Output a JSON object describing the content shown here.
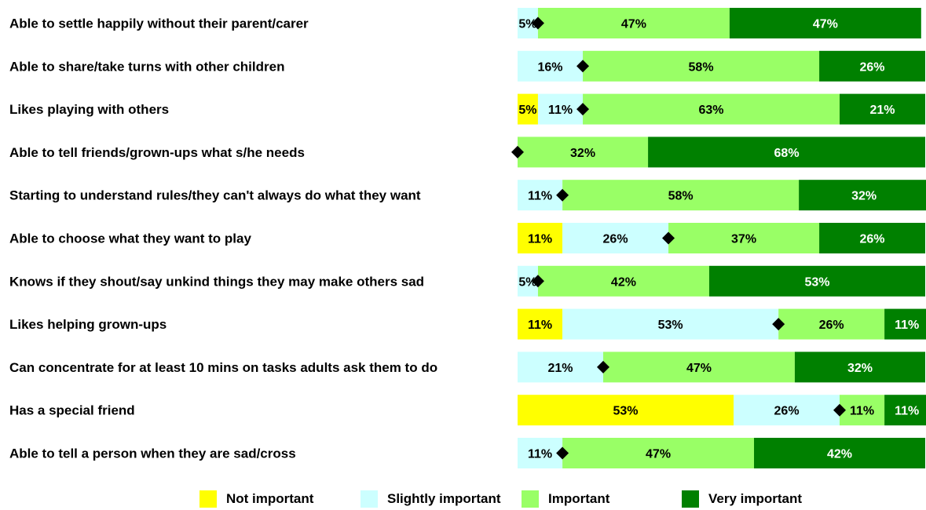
{
  "chart_data": {
    "type": "bar",
    "orientation": "horizontal",
    "stacked": true,
    "normalized_percent": true,
    "categories": [
      "Able to settle happily without their parent/carer",
      "Able to share/take turns with other children",
      "Likes playing with others",
      "Able to tell friends/grown-ups what s/he needs",
      "Starting to understand rules/they can't always do what they want",
      "Able to choose what they want to play",
      "Knows if they shout/say unkind things they may make others sad",
      "Likes helping grown-ups",
      "Can concentrate for at least 10 mins on tasks adults ask them to do",
      "Has a special friend",
      "Able to tell a person when they are sad/cross"
    ],
    "series": [
      {
        "name": "Not important",
        "color": "#ffff00",
        "values": [
          0,
          0,
          5,
          0,
          0,
          11,
          0,
          11,
          0,
          53,
          0
        ]
      },
      {
        "name": "Slightly important",
        "color": "#ccffff",
        "values": [
          5,
          16,
          11,
          0,
          11,
          26,
          5,
          53,
          21,
          26,
          11
        ]
      },
      {
        "name": "Important",
        "color": "#99ff66",
        "values": [
          47,
          58,
          63,
          32,
          58,
          37,
          42,
          26,
          47,
          11,
          47
        ]
      },
      {
        "name": "Very important",
        "color": "#008000",
        "values": [
          47,
          26,
          21,
          68,
          32,
          26,
          53,
          11,
          32,
          11,
          42
        ]
      }
    ],
    "marker": {
      "shape": "diamond",
      "color": "#000000",
      "position": "boundary between Slightly important and Important"
    },
    "xlim": [
      0,
      100
    ],
    "legend_position": "bottom",
    "grid": false
  }
}
